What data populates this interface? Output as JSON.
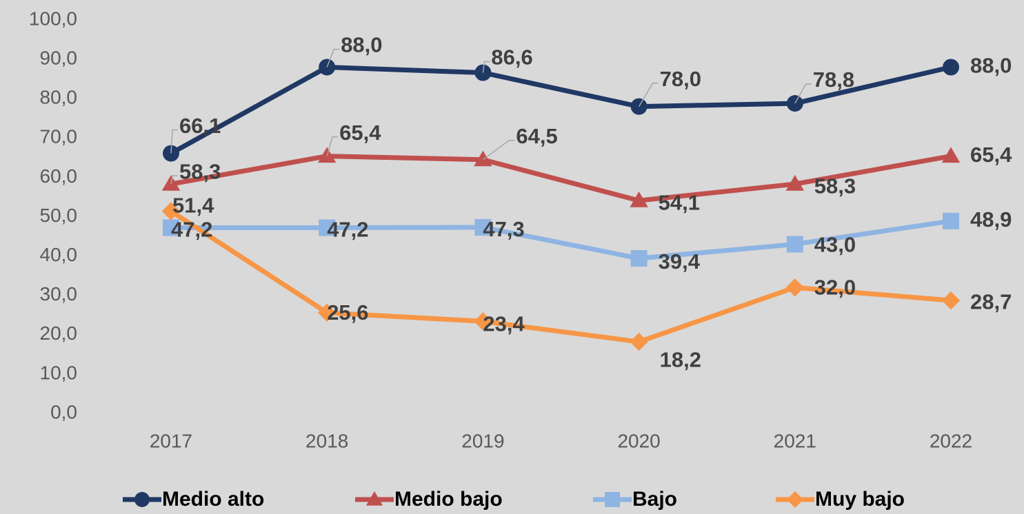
{
  "chart_data": {
    "type": "line",
    "categories": [
      "2017",
      "2018",
      "2019",
      "2020",
      "2021",
      "2022"
    ],
    "series": [
      {
        "name": "Medio alto",
        "color": "#203864",
        "marker": "circle",
        "values": [
          66.1,
          88.0,
          86.6,
          78.0,
          78.8,
          88.0
        ],
        "value_labels": [
          "66,1",
          "88,0",
          "86,6",
          "78,0",
          "78,8",
          "88,0"
        ]
      },
      {
        "name": "Medio bajo",
        "color": "#c0504d",
        "marker": "triangle",
        "values": [
          58.3,
          65.4,
          64.5,
          54.1,
          58.3,
          65.4
        ],
        "value_labels": [
          "58,3",
          "65,4",
          "64,5",
          "54,1",
          "58,3",
          "65,4"
        ]
      },
      {
        "name": "Bajo",
        "color": "#8eb4e3",
        "marker": "square",
        "values": [
          47.2,
          47.2,
          47.3,
          39.4,
          43.0,
          48.9
        ],
        "value_labels": [
          "47,2",
          "47,2",
          "47,3",
          "39,4",
          "43,0",
          "48,9"
        ]
      },
      {
        "name": "Muy bajo",
        "color": "#f79646",
        "marker": "diamond",
        "values": [
          51.4,
          25.6,
          23.4,
          18.2,
          32.0,
          28.7
        ],
        "value_labels": [
          "51,4",
          "25,6",
          "23,4",
          "18,2",
          "32,0",
          "28,7"
        ]
      }
    ],
    "ylim": [
      0,
      100
    ],
    "yticks": [
      {
        "value": 0,
        "label": "0,0"
      },
      {
        "value": 10,
        "label": "10,0"
      },
      {
        "value": 20,
        "label": "20,0"
      },
      {
        "value": 30,
        "label": "30,0"
      },
      {
        "value": 40,
        "label": "40,0"
      },
      {
        "value": 50,
        "label": "50,0"
      },
      {
        "value": 60,
        "label": "60,0"
      },
      {
        "value": 70,
        "label": "70,0"
      },
      {
        "value": 80,
        "label": "80,0"
      },
      {
        "value": 90,
        "label": "90,0"
      },
      {
        "value": 100,
        "label": "100,0"
      }
    ],
    "grid": false,
    "legend": "bottom"
  }
}
